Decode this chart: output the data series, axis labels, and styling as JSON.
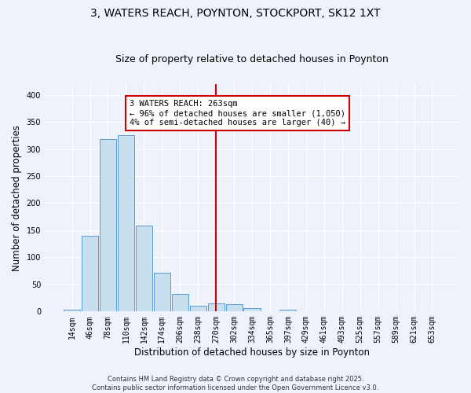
{
  "title": "3, WATERS REACH, POYNTON, STOCKPORT, SK12 1XT",
  "subtitle": "Size of property relative to detached houses in Poynton",
  "xlabel": "Distribution of detached houses by size in Poynton",
  "ylabel": "Number of detached properties",
  "bin_labels": [
    "14sqm",
    "46sqm",
    "78sqm",
    "110sqm",
    "142sqm",
    "174sqm",
    "206sqm",
    "238sqm",
    "270sqm",
    "302sqm",
    "334sqm",
    "365sqm",
    "397sqm",
    "429sqm",
    "461sqm",
    "493sqm",
    "525sqm",
    "557sqm",
    "589sqm",
    "621sqm",
    "653sqm"
  ],
  "bar_heights": [
    3,
    140,
    318,
    326,
    159,
    71,
    33,
    11,
    15,
    13,
    7,
    0,
    4,
    1,
    0,
    0,
    0,
    0,
    0,
    0,
    1
  ],
  "bar_color": "#c8dff0",
  "bar_edge_color": "#5b9bd5",
  "vline_x": 8,
  "vline_color": "#cc0000",
  "ylim": [
    0,
    420
  ],
  "yticks": [
    0,
    50,
    100,
    150,
    200,
    250,
    300,
    350,
    400
  ],
  "annotation_title": "3 WATERS REACH: 263sqm",
  "annotation_line1": "← 96% of detached houses are smaller (1,050)",
  "annotation_line2": "4% of semi-detached houses are larger (40) →",
  "annotation_box_color": "#cc0000",
  "footnote1": "Contains HM Land Registry data © Crown copyright and database right 2025.",
  "footnote2": "Contains public sector information licensed under the Open Government Licence v3.0.",
  "background_color": "#eef2fb",
  "title_fontsize": 10,
  "subtitle_fontsize": 9,
  "axis_label_fontsize": 8.5,
  "tick_fontsize": 7,
  "annotation_fontsize": 7.5,
  "footnote_fontsize": 6
}
